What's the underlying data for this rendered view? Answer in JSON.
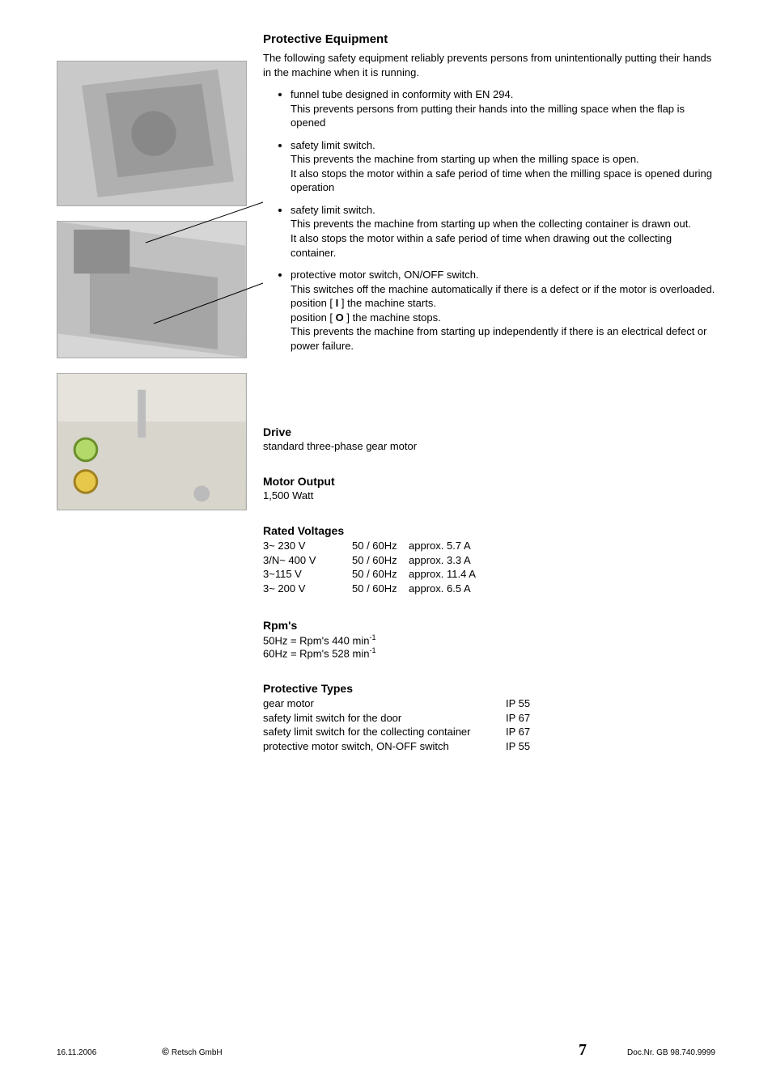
{
  "section_title": "Protective Equipment",
  "intro": "The following safety equipment reliably prevents persons from unintentionally putting their hands in the machine when it is running.",
  "bullets": [
    {
      "head": "funnel tube designed in conformity with EN 294.",
      "body": "This prevents persons from putting their hands into the milling space when the flap is opened"
    },
    {
      "head": "safety limit switch.",
      "body": "This prevents the machine from starting up when the milling space is open.\nIt also stops the motor within a safe period of time when the milling space is opened during operation"
    },
    {
      "head": "safety limit switch.",
      "body": "This prevents the machine from starting up when the collecting container is drawn out.\nIt also stops the motor within a safe period of time when drawing out the collecting container."
    },
    {
      "head": "protective motor switch, ON/OFF switch.",
      "body_html": "This switches off the machine automatically if there is a defect or if the motor is overloaded.<br>position [ <b>I</b> ] the machine starts.<br>position [ <b>O</b> ] the machine stops.<br>This prevents the machine from starting up independently if there is an electrical defect or power failure."
    }
  ],
  "drive": {
    "title": "Drive",
    "text": "standard three-phase gear motor"
  },
  "motor_output": {
    "title": "Motor Output",
    "text": "1,500 Watt"
  },
  "rated_voltages": {
    "title": "Rated Voltages",
    "rows": [
      {
        "v": "3~ 230 V",
        "hz": "50 / 60Hz",
        "a": "approx. 5.7 A"
      },
      {
        "v": "3/N~ 400 V",
        "hz": "50 / 60Hz",
        "a": "approx. 3.3 A"
      },
      {
        "v": "3~115 V",
        "hz": "50 / 60Hz",
        "a": "approx. 11.4 A"
      },
      {
        "v": "3~ 200 V",
        "hz": "50 / 60Hz",
        "a": "approx. 6.5 A"
      }
    ]
  },
  "rpm": {
    "title": "Rpm's",
    "l1": "50Hz = Rpm's 440 min",
    "l2": "60Hz = Rpm's 528 min",
    "sup": "-1"
  },
  "protective_types": {
    "title": "Protective Types",
    "rows": [
      {
        "label": "gear motor",
        "ip": "IP 55"
      },
      {
        "label": "safety limit switch for the door",
        "ip": "IP 67"
      },
      {
        "label": "safety limit switch for the collecting container",
        "ip": "IP 67"
      },
      {
        "label": "protective motor switch, ON-OFF switch",
        "ip": "IP 55"
      }
    ]
  },
  "footer": {
    "date": "16.11.2006",
    "brand": "Retsch GmbH",
    "page": "7",
    "doc": "Doc.Nr.  GB 98.740.9999"
  },
  "colors": {
    "text": "#000000",
    "bg": "#ffffff",
    "img_border": "#aaaaaa"
  }
}
